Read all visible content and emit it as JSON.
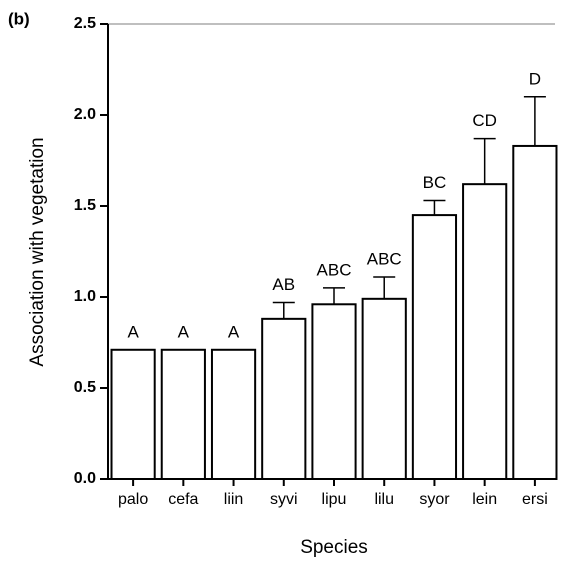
{
  "chart_data": {
    "type": "bar",
    "panel_label": "(b)",
    "x_label": "Species",
    "y_label": "Association with vegetation",
    "categories": [
      "palo",
      "cefa",
      "liin",
      "syvi",
      "lipu",
      "lilu",
      "syor",
      "lein",
      "ersi"
    ],
    "values": [
      0.71,
      0.71,
      0.71,
      0.88,
      0.96,
      0.99,
      1.45,
      1.62,
      1.83
    ],
    "errors": [
      0,
      0,
      0,
      0.09,
      0.09,
      0.12,
      0.08,
      0.25,
      0.27
    ],
    "letters": [
      "A",
      "A",
      "A",
      "AB",
      "ABC",
      "ABC",
      "BC",
      "CD",
      "D"
    ],
    "color": "#ffffff",
    "ylim": [
      0,
      2.5
    ],
    "yticks": [
      {
        "value": 0,
        "label": "0.0"
      },
      {
        "value": 0.5,
        "label": "0.5"
      },
      {
        "value": 1,
        "label": "1.0"
      },
      {
        "value": 1.5,
        "label": "1.5"
      },
      {
        "value": 2,
        "label": "2.0"
      },
      {
        "value": 2.5,
        "label": "2.5"
      }
    ]
  }
}
